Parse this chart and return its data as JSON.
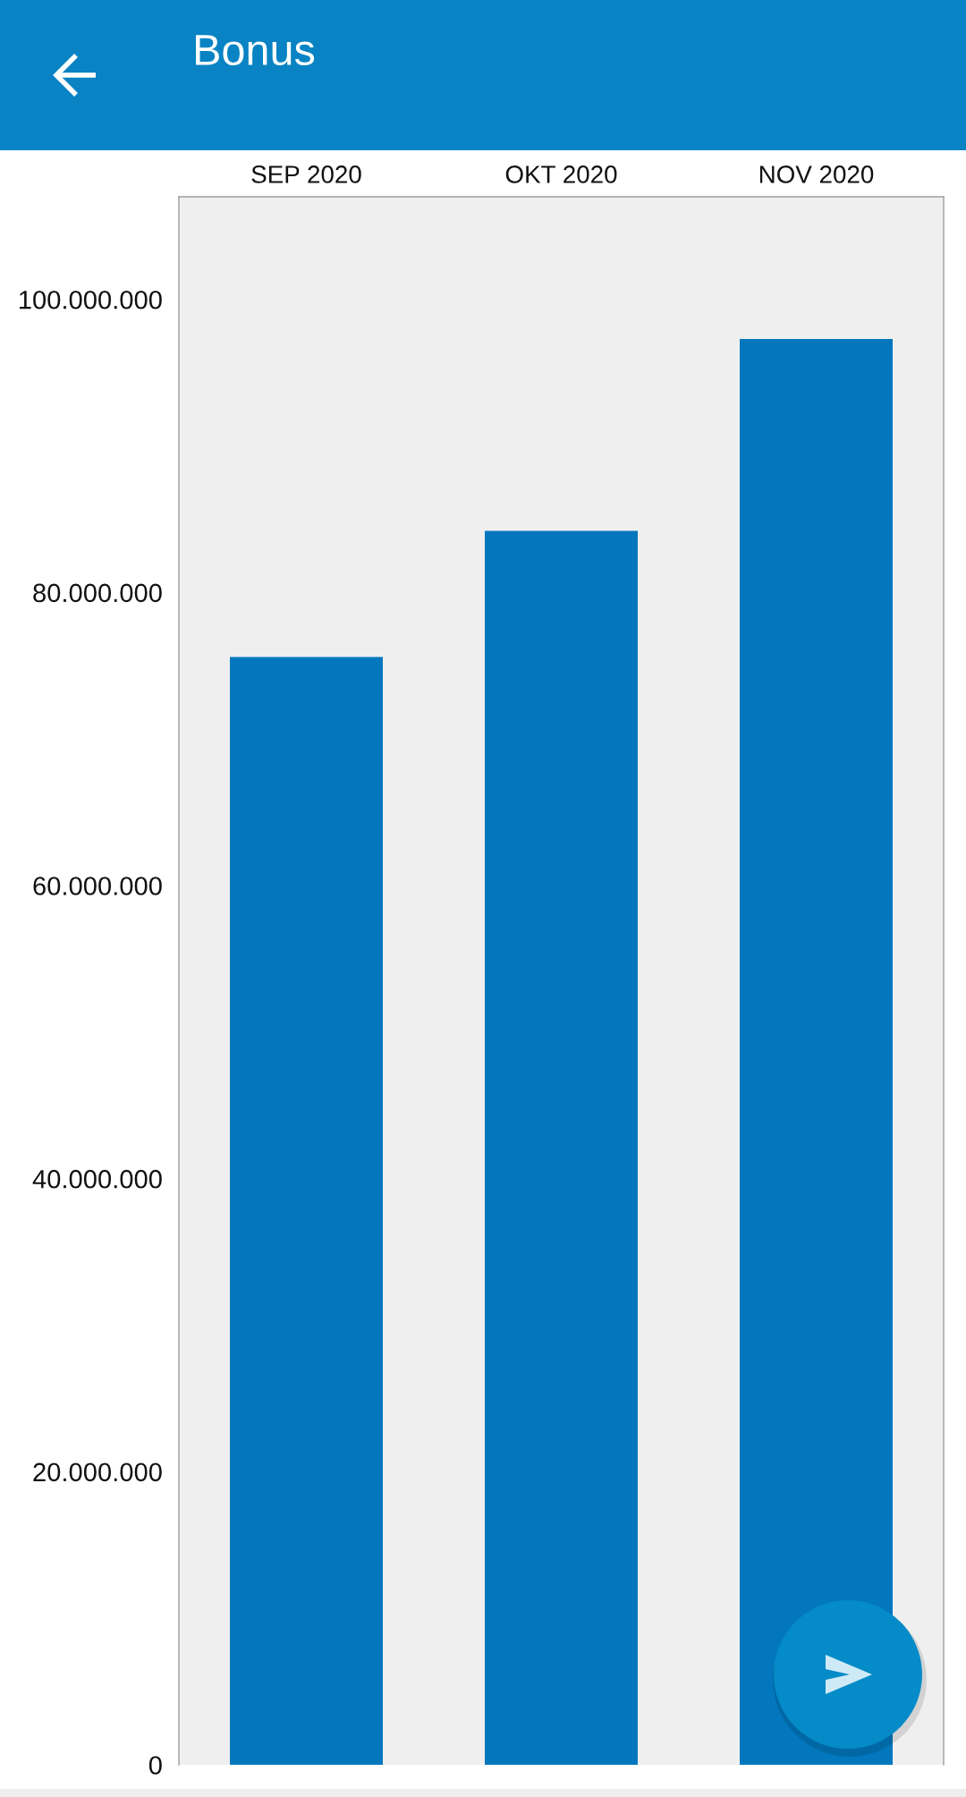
{
  "chart_data": {
    "type": "bar",
    "title": "Bonus",
    "categories": [
      "SEP 2020",
      "OKT 2020",
      "NOV 2020"
    ],
    "values": [
      75600000,
      84200000,
      97300000
    ],
    "color": "#0277bd",
    "ylim": [
      0,
      107000000
    ],
    "yticks": [
      0,
      {
        "value": 20000000,
        "label": "20.000.000"
      },
      {
        "value": 40000000,
        "label": "40.000.000"
      },
      {
        "value": 60000000,
        "label": "60.000.000"
      },
      {
        "value": 80000000,
        "label": "80.000.000"
      },
      {
        "value": 100000000,
        "label": "100.000.000"
      }
    ],
    "grid": false
  }
}
